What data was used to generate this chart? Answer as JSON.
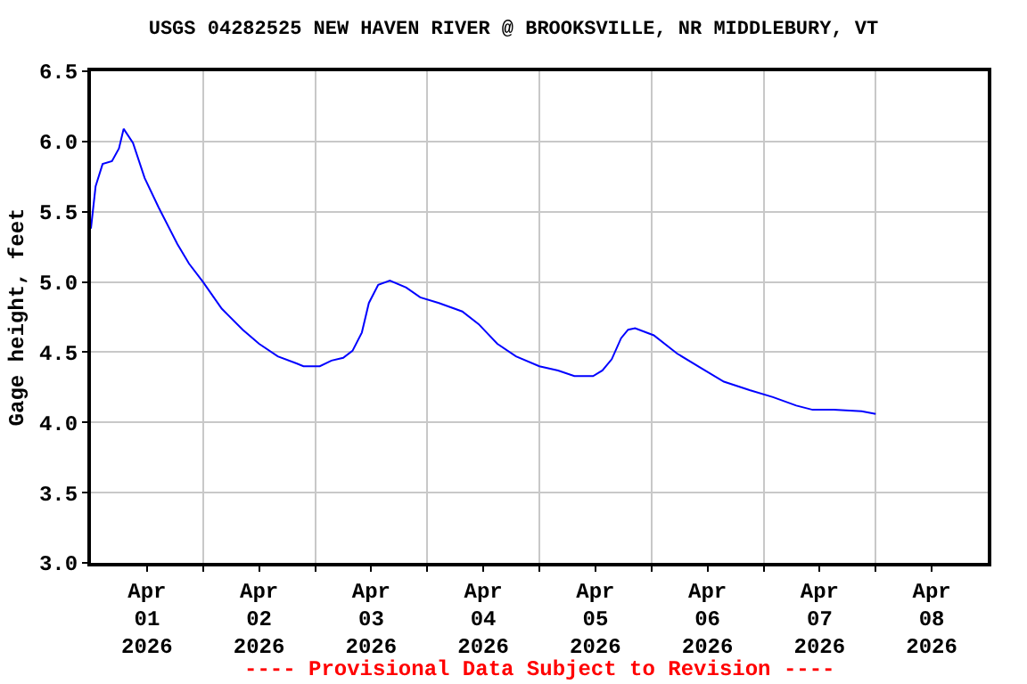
{
  "chart_data": {
    "type": "line",
    "title": "USGS 04282525 NEW HAVEN RIVER @ BROOKSVILLE, NR MIDDLEBURY, VT",
    "ylabel": "Gage height, feet",
    "annotations": [
      "---- Provisional Data Subject to Revision ----"
    ],
    "x": [
      "2026-04-01T00:00",
      "2026-04-01T01:00",
      "2026-04-01T02:30",
      "2026-04-01T04:30",
      "2026-04-01T06:00",
      "2026-04-01T07:00",
      "2026-04-01T09:00",
      "2026-04-01T11:30",
      "2026-04-01T14:30",
      "2026-04-01T18:30",
      "2026-04-01T21:00",
      "2026-04-02T00:00",
      "2026-04-02T04:00",
      "2026-04-02T08:30",
      "2026-04-02T12:00",
      "2026-04-02T16:00",
      "2026-04-02T20:00",
      "2026-04-02T21:30",
      "2026-04-03T01:00",
      "2026-04-03T03:30",
      "2026-04-03T06:00",
      "2026-04-03T08:00",
      "2026-04-03T10:00",
      "2026-04-03T11:30",
      "2026-04-03T13:30",
      "2026-04-03T16:00",
      "2026-04-03T19:30",
      "2026-04-03T22:30",
      "2026-04-04T02:30",
      "2026-04-04T07:30",
      "2026-04-04T11:00",
      "2026-04-04T15:00",
      "2026-04-04T19:00",
      "2026-04-05T00:00",
      "2026-04-05T04:00",
      "2026-04-05T07:30",
      "2026-04-05T11:30",
      "2026-04-05T13:30",
      "2026-04-05T15:30",
      "2026-04-05T17:30",
      "2026-04-05T19:00",
      "2026-04-05T20:30",
      "2026-04-06T00:30",
      "2026-04-06T05:30",
      "2026-04-06T10:30",
      "2026-04-06T15:30",
      "2026-04-06T21:00",
      "2026-04-07T02:00",
      "2026-04-07T07:00",
      "2026-04-07T10:30",
      "2026-04-07T15:00",
      "2026-04-07T21:00",
      "2026-04-08T00:00"
    ],
    "series": [
      {
        "color": "#0000ff",
        "values": [
          5.38,
          5.68,
          5.84,
          5.86,
          5.95,
          6.09,
          5.99,
          5.74,
          5.53,
          5.27,
          5.13,
          5.0,
          4.81,
          4.66,
          4.56,
          4.47,
          4.42,
          4.4,
          4.4,
          4.44,
          4.46,
          4.51,
          4.64,
          4.85,
          4.98,
          5.01,
          4.96,
          4.89,
          4.85,
          4.79,
          4.7,
          4.56,
          4.47,
          4.4,
          4.37,
          4.33,
          4.33,
          4.37,
          4.45,
          4.6,
          4.66,
          4.67,
          4.62,
          4.49,
          4.39,
          4.29,
          4.23,
          4.18,
          4.12,
          4.09,
          4.09,
          4.08,
          4.06
        ]
      }
    ],
    "xlim": [
      "2026-04-01T00:00",
      "2026-04-09T00:00"
    ],
    "xticks": [
      {
        "value": "2026-04-01T12:00",
        "label": "Apr\n01\n2026"
      },
      {
        "value": "2026-04-02T12:00",
        "label": "Apr\n02\n2026"
      },
      {
        "value": "2026-04-03T12:00",
        "label": "Apr\n03\n2026"
      },
      {
        "value": "2026-04-04T12:00",
        "label": "Apr\n04\n2026"
      },
      {
        "value": "2026-04-05T12:00",
        "label": "Apr\n05\n2026"
      },
      {
        "value": "2026-04-06T12:00",
        "label": "Apr\n06\n2026"
      },
      {
        "value": "2026-04-07T12:00",
        "label": "Apr\n07\n2026"
      },
      {
        "value": "2026-04-08T12:00",
        "label": "Apr\n08\n2026"
      },
      {
        "value": "2026-04-02T00:00",
        "label": null
      },
      {
        "value": "2026-04-03T00:00",
        "label": null
      },
      {
        "value": "2026-04-04T00:00",
        "label": null
      },
      {
        "value": "2026-04-05T00:00",
        "label": null
      },
      {
        "value": "2026-04-06T00:00",
        "label": null
      },
      {
        "value": "2026-04-07T00:00",
        "label": null
      },
      {
        "value": "2026-04-08T00:00",
        "label": null
      }
    ],
    "ylim": [
      3.0,
      6.5
    ],
    "yticks": [
      {
        "value": 3.0,
        "label": "3.0"
      },
      {
        "value": 3.5,
        "label": "3.5"
      },
      {
        "value": 4.0,
        "label": "4.0"
      },
      {
        "value": 4.5,
        "label": "4.5"
      },
      {
        "value": 5.0,
        "label": "5.0"
      },
      {
        "value": 5.5,
        "label": "5.5"
      },
      {
        "value": 6.0,
        "label": "6.0"
      },
      {
        "value": 6.5,
        "label": "6.5"
      }
    ],
    "grid": true,
    "line_style": "solid",
    "marker": "none"
  }
}
